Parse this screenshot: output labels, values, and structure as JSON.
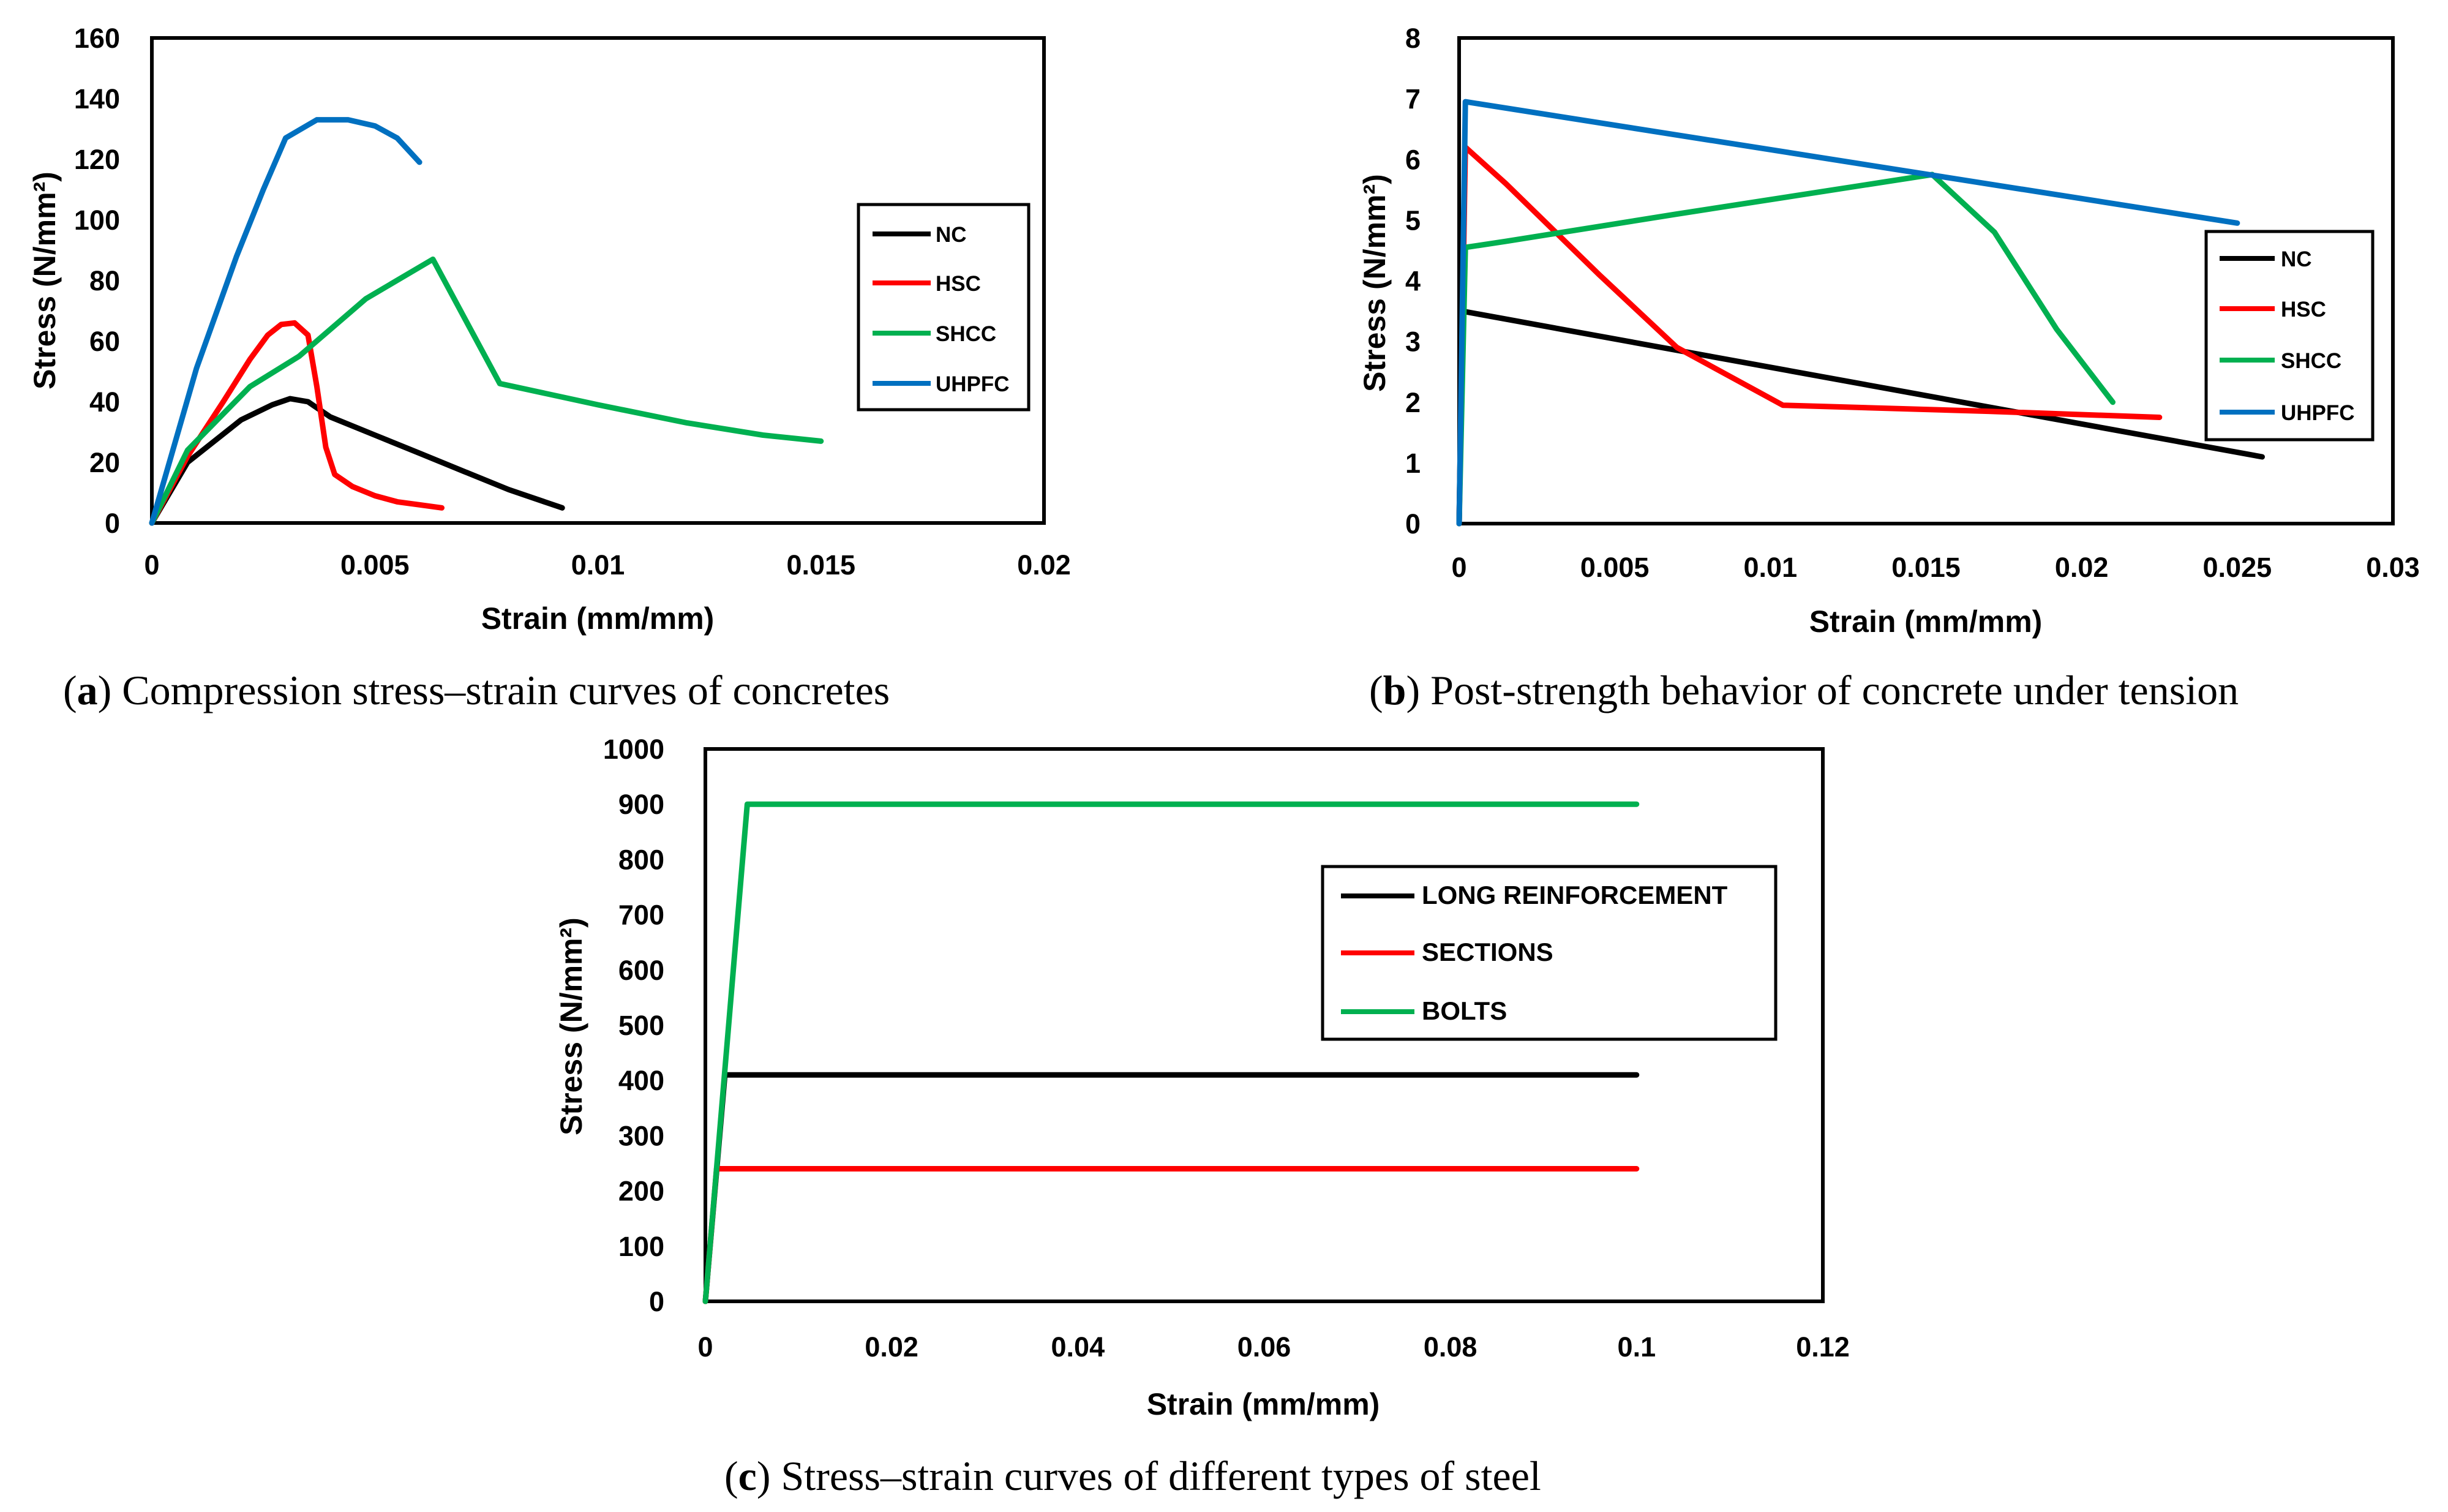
{
  "chart_data": [
    {
      "id": "a",
      "type": "line",
      "caption_letter": "a",
      "caption_text": " Compression stress–strain curves of concretes",
      "xlabel": "Strain (mm/mm)",
      "ylabel": "Stress (N/mm²)",
      "xlim": [
        0,
        0.02
      ],
      "ylim": [
        0,
        160
      ],
      "x_ticks": [
        0,
        0.005,
        0.01,
        0.015,
        0.02
      ],
      "x_tick_labels": [
        "0",
        "0.005",
        "0.01",
        "0.015",
        "0.02"
      ],
      "y_ticks": [
        0,
        20,
        40,
        60,
        80,
        100,
        120,
        140,
        160
      ],
      "y_tick_labels": [
        "0",
        "20",
        "40",
        "60",
        "80",
        "100",
        "120",
        "140",
        "160"
      ],
      "legend_position": "right",
      "grid": false,
      "series": [
        {
          "name": "NC",
          "color": "#000000",
          "points": [
            [
              0,
              0
            ],
            [
              0.0008,
              20
            ],
            [
              0.002,
              34
            ],
            [
              0.0027,
              39
            ],
            [
              0.0031,
              41
            ],
            [
              0.0035,
              40
            ],
            [
              0.004,
              35
            ],
            [
              0.005,
              29
            ],
            [
              0.006,
              23
            ],
            [
              0.007,
              17
            ],
            [
              0.008,
              11
            ],
            [
              0.0092,
              5
            ]
          ]
        },
        {
          "name": "HSC",
          "color": "#ff0000",
          "points": [
            [
              0,
              0
            ],
            [
              0.0008,
              22
            ],
            [
              0.0016,
              40
            ],
            [
              0.0022,
              54
            ],
            [
              0.0026,
              62
            ],
            [
              0.0029,
              65.5
            ],
            [
              0.0032,
              66
            ],
            [
              0.0035,
              62
            ],
            [
              0.0037,
              45
            ],
            [
              0.0039,
              25
            ],
            [
              0.0041,
              16
            ],
            [
              0.0045,
              12
            ],
            [
              0.005,
              9
            ],
            [
              0.0055,
              7
            ],
            [
              0.006,
              6
            ],
            [
              0.0065,
              5
            ]
          ]
        },
        {
          "name": "SHCC",
          "color": "#00b050",
          "points": [
            [
              0,
              0
            ],
            [
              0.0008,
              24
            ],
            [
              0.0022,
              45
            ],
            [
              0.0033,
              55
            ],
            [
              0.0048,
              74
            ],
            [
              0.0063,
              87
            ],
            [
              0.0078,
              46
            ],
            [
              0.01,
              39
            ],
            [
              0.012,
              33
            ],
            [
              0.0137,
              29
            ],
            [
              0.015,
              27
            ]
          ]
        },
        {
          "name": "UHPFC",
          "color": "#0070c0",
          "points": [
            [
              0,
              0
            ],
            [
              0.001,
              51
            ],
            [
              0.0019,
              88
            ],
            [
              0.0025,
              110
            ],
            [
              0.003,
              127
            ],
            [
              0.0037,
              133
            ],
            [
              0.0044,
              133
            ],
            [
              0.005,
              131
            ],
            [
              0.0055,
              127
            ],
            [
              0.006,
              119
            ]
          ]
        }
      ]
    },
    {
      "id": "b",
      "type": "line",
      "caption_letter": "b",
      "caption_text": " Post-strength behavior of concrete under tension",
      "xlabel": "Strain (mm/mm)",
      "ylabel": "Stress (N/mm²)",
      "xlim": [
        0,
        0.03
      ],
      "ylim": [
        0,
        8
      ],
      "x_ticks": [
        0,
        0.005,
        0.01,
        0.015,
        0.02,
        0.025,
        0.03
      ],
      "x_tick_labels": [
        "0",
        "0.005",
        "0.01",
        "0.015",
        "0.02",
        "0.025",
        "0.03"
      ],
      "y_ticks": [
        0,
        1,
        2,
        3,
        4,
        5,
        6,
        7,
        8
      ],
      "y_tick_labels": [
        "0",
        "1",
        "2",
        "3",
        "4",
        "5",
        "6",
        "7",
        "8"
      ],
      "legend_position": "right",
      "grid": false,
      "series": [
        {
          "name": "NC",
          "color": "#000000",
          "points": [
            [
              0,
              0
            ],
            [
              0.0001,
              3.5
            ],
            [
              0.0258,
              1.1
            ]
          ]
        },
        {
          "name": "HSC",
          "color": "#ff0000",
          "points": [
            [
              0,
              0
            ],
            [
              0.0002,
              6.2
            ],
            [
              0.0015,
              5.6
            ],
            [
              0.0045,
              4.1
            ],
            [
              0.007,
              2.9
            ],
            [
              0.0104,
              1.95
            ],
            [
              0.017,
              1.85
            ],
            [
              0.0225,
              1.75
            ]
          ]
        },
        {
          "name": "SHCC",
          "color": "#00b050",
          "points": [
            [
              0,
              0
            ],
            [
              0.0002,
              4.55
            ],
            [
              0.0015,
              4.65
            ],
            [
              0.007,
              5.1
            ],
            [
              0.0152,
              5.75
            ],
            [
              0.0172,
              4.8
            ],
            [
              0.0192,
              3.2
            ],
            [
              0.021,
              2.0
            ]
          ]
        },
        {
          "name": "UHPFC",
          "color": "#0070c0",
          "points": [
            [
              0,
              0
            ],
            [
              0.0002,
              6.95
            ],
            [
              0.025,
              4.95
            ]
          ]
        }
      ]
    },
    {
      "id": "c",
      "type": "line",
      "caption_letter": "c",
      "caption_text": " Stress–strain curves of different types of steel",
      "xlabel": "Strain (mm/mm)",
      "ylabel": "Stress (N/mm²)",
      "xlim": [
        0,
        0.12
      ],
      "ylim": [
        0,
        1000
      ],
      "x_ticks": [
        0,
        0.02,
        0.04,
        0.06,
        0.08,
        0.1,
        0.12
      ],
      "x_tick_labels": [
        "0",
        "0.02",
        "0.04",
        "0.06",
        "0.08",
        "0.1",
        "0.12"
      ],
      "y_ticks": [
        0,
        100,
        200,
        300,
        400,
        500,
        600,
        700,
        800,
        900,
        1000
      ],
      "y_tick_labels": [
        "0",
        "100",
        "200",
        "300",
        "400",
        "500",
        "600",
        "700",
        "800",
        "900",
        "1000"
      ],
      "legend_position": "top-right",
      "grid": false,
      "series": [
        {
          "name": "LONG REINFORCEMENT",
          "color": "#000000",
          "points": [
            [
              0,
              0
            ],
            [
              0.0021,
              410
            ],
            [
              0.1,
              410
            ]
          ]
        },
        {
          "name": "SECTIONS",
          "color": "#ff0000",
          "points": [
            [
              0,
              0
            ],
            [
              0.0012,
              240
            ],
            [
              0.1,
              240
            ]
          ]
        },
        {
          "name": "BOLTS",
          "color": "#00b050",
          "points": [
            [
              0,
              0
            ],
            [
              0.0045,
              900
            ],
            [
              0.1,
              900
            ]
          ]
        }
      ]
    }
  ]
}
